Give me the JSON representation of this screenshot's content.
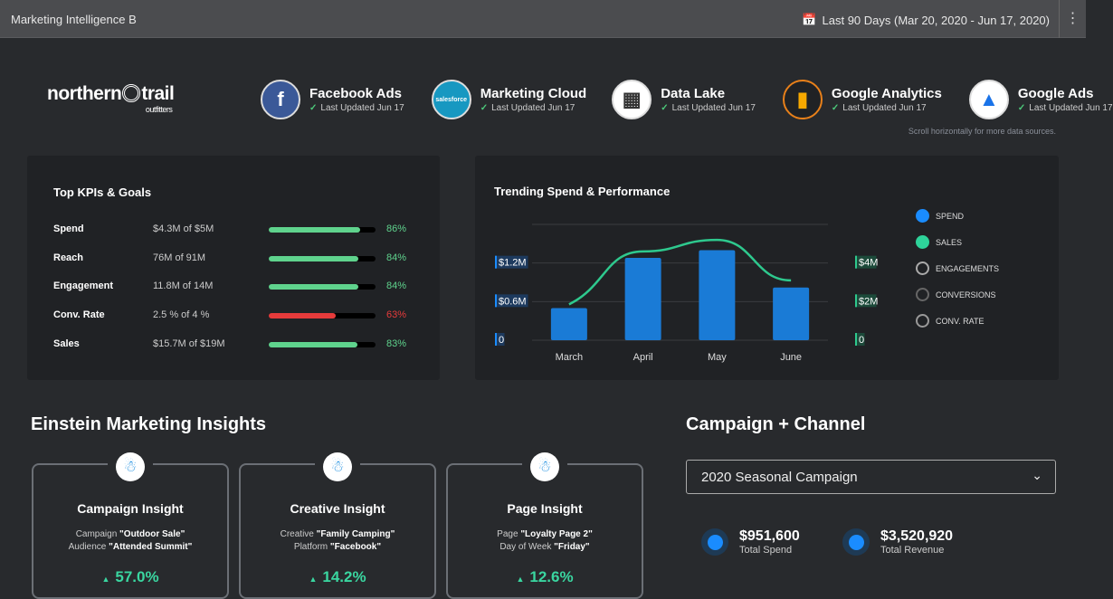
{
  "header": {
    "title": "Marketing Intelligence B",
    "date_range": "Last 90 Days (Mar 20, 2020 - Jun 17, 2020)",
    "calendar_icon": "calendar-icon",
    "menu_icon": "kebab-icon"
  },
  "brand": {
    "name_left": "northern",
    "name_right": "trail",
    "sub": "outfitters"
  },
  "sources": [
    {
      "name": "Facebook Ads",
      "updated": "Last Updated Jun 17",
      "glyph": "f",
      "bg": "#3b5998"
    },
    {
      "name": "Marketing Cloud",
      "updated": "Last Updated Jun 17",
      "glyph": "salesforce",
      "bg": "#1798c1"
    },
    {
      "name": "Data Lake",
      "updated": "Last Updated Jun 17",
      "glyph": "▦",
      "bg": "#ffffff"
    },
    {
      "name": "Google Analytics",
      "updated": "Last Updated Jun 17",
      "glyph": "▮",
      "bg": "#202225"
    },
    {
      "name": "Google Ads",
      "updated": "Last Updated Jun 17",
      "glyph": "▲",
      "bg": "#ffffff"
    }
  ],
  "scroll_note": "Scroll horizontally for more data sources.",
  "kpis": {
    "title": "Top KPIs & Goals",
    "items": [
      {
        "label": "Spend",
        "value": "$4.3M of $5M",
        "pct": "86%",
        "fraction": 0.86,
        "color": "#5fd38d"
      },
      {
        "label": "Reach",
        "value": "76M of 91M",
        "pct": "84%",
        "fraction": 0.84,
        "color": "#5fd38d"
      },
      {
        "label": "Engagement",
        "value": "11.8M of 14M",
        "pct": "84%",
        "fraction": 0.84,
        "color": "#5fd38d"
      },
      {
        "label": "Conv. Rate",
        "value": "2.5 % of 4 %",
        "pct": "63%",
        "fraction": 0.63,
        "color": "#e63b3b"
      },
      {
        "label": "Sales",
        "value": "$15.7M of $19M",
        "pct": "83%",
        "fraction": 0.83,
        "color": "#5fd38d"
      }
    ]
  },
  "chart_data": {
    "type": "bar",
    "title": "Trending Spend & Performance",
    "categories": [
      "March",
      "April",
      "May",
      "June"
    ],
    "series": [
      {
        "name": "SPEND",
        "type": "bar",
        "axis": "left",
        "color": "#1a7bd6",
        "values": [
          0.5,
          1.28,
          1.4,
          0.82
        ]
      },
      {
        "name": "SALES",
        "type": "line",
        "axis": "right",
        "color": "#2ec98e",
        "values": [
          1.86,
          4.6,
          5.2,
          3.1
        ]
      }
    ],
    "left_ticks": [
      {
        "v": 0,
        "label": "0"
      },
      {
        "v": 0.6,
        "label": "$0.6M"
      },
      {
        "v": 1.2,
        "label": "$1.2M"
      }
    ],
    "right_ticks": [
      {
        "v": 0,
        "label": "0"
      },
      {
        "v": 2,
        "label": "$2M"
      },
      {
        "v": 4,
        "label": "$4M"
      }
    ],
    "ylim_left": [
      0,
      1.8
    ],
    "ylim_right": [
      0,
      6
    ],
    "legend": [
      {
        "label": "SPEND",
        "color": "#1a8cff",
        "filled": true
      },
      {
        "label": "SALES",
        "color": "#2ed39a",
        "filled": true
      },
      {
        "label": "ENGAGEMENTS",
        "color": "#aaaaaa",
        "filled": false
      },
      {
        "label": "CONVERSIONS",
        "color": "#666666",
        "filled": false
      },
      {
        "label": "CONV. RATE",
        "color": "#999999",
        "filled": false
      }
    ],
    "legend_position": "right"
  },
  "insights": {
    "title": "Einstein Marketing Insights",
    "cards": [
      {
        "title": "Campaign Insight",
        "l1k": "Campaign ",
        "l1v": "\"Outdoor Sale\"",
        "l2k": "Audience ",
        "l2v": "\"Attended Summit\"",
        "pct": "57.0%"
      },
      {
        "title": "Creative Insight",
        "l1k": "Creative ",
        "l1v": "\"Family Camping\"",
        "l2k": "Platform ",
        "l2v": "\"Facebook\"",
        "pct": "14.2%"
      },
      {
        "title": "Page Insight",
        "l1k": "Page ",
        "l1v": "\"Loyalty Page 2\"",
        "l2k": "Day of Week ",
        "l2v": "\"Friday\"",
        "pct": "12.6%"
      }
    ]
  },
  "campaign": {
    "title": "Campaign + Channel",
    "selected": "2020 Seasonal Campaign",
    "totals": [
      {
        "value": "$951,600",
        "label": "Total Spend"
      },
      {
        "value": "$3,520,920",
        "label": "Total Revenue"
      }
    ]
  }
}
